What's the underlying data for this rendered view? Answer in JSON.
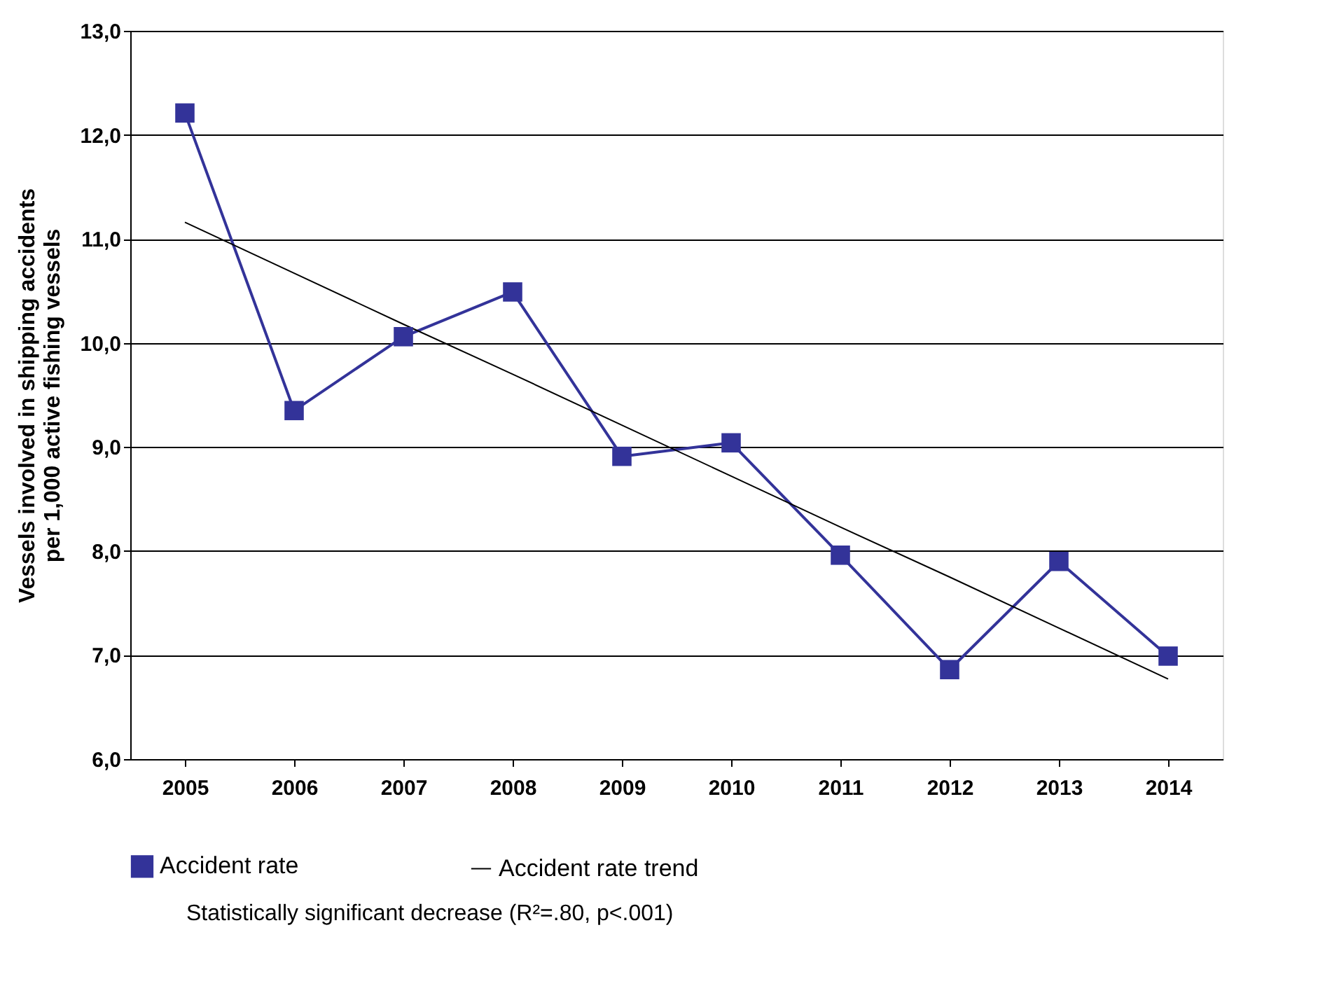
{
  "chart_data": {
    "type": "line",
    "ylabel": "Vessels involved in shipping accidents per 1,000 active fishing vessels",
    "categories": [
      "2005",
      "2006",
      "2007",
      "2008",
      "2009",
      "2010",
      "2011",
      "2012",
      "2013",
      "2014"
    ],
    "series": [
      {
        "name": "Accident rate",
        "color": "#333399",
        "marker": "square",
        "values": [
          12.21,
          9.35,
          10.06,
          10.49,
          8.91,
          9.04,
          7.96,
          6.86,
          7.9,
          6.99
        ]
      },
      {
        "name": "Accident rate trend",
        "color": "#000000",
        "marker": "none",
        "values": [
          11.16,
          10.67,
          10.18,
          9.7,
          9.21,
          8.72,
          8.23,
          7.75,
          7.26,
          6.77
        ]
      }
    ],
    "ylim": [
      6,
      13
    ],
    "yticks": [
      {
        "value": 6,
        "label": "6,0"
      },
      {
        "value": 7,
        "label": "7,0"
      },
      {
        "value": 8,
        "label": "8,0"
      },
      {
        "value": 9,
        "label": "9,0"
      },
      {
        "value": 10,
        "label": "10,0"
      },
      {
        "value": 11,
        "label": "11,0"
      },
      {
        "value": 12,
        "label": "12,0"
      },
      {
        "value": 13,
        "label": "13,0"
      }
    ],
    "grid": "y",
    "legend": "bottom",
    "line_style": "solid",
    "annotations": [
      "Statistically significant decrease (R²=.80, p<.001)"
    ]
  }
}
